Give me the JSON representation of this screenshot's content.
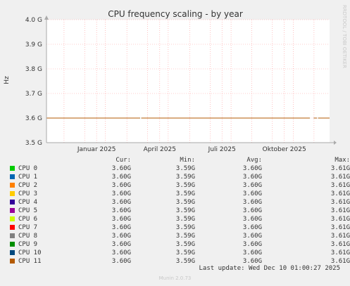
{
  "chart_data": {
    "type": "line",
    "title": "CPU frequency scaling - by year",
    "ylabel": "Hz",
    "side_text": "RRDTOOL / TOBI OETIKER",
    "ylim": [
      3.5,
      4.0
    ],
    "y_ticks": [
      {
        "value": 3.5,
        "label": "3.5 G"
      },
      {
        "value": 3.6,
        "label": "3.6 G"
      },
      {
        "value": 3.7,
        "label": "3.7 G"
      },
      {
        "value": 3.8,
        "label": "3.8 G"
      },
      {
        "value": 3.9,
        "label": "3.9 G"
      },
      {
        "value": 4.0,
        "label": "4.0 G"
      }
    ],
    "x_ticks": [
      {
        "label": "Januar 2025",
        "pos": 0.177
      },
      {
        "label": "April 2025",
        "pos": 0.4
      },
      {
        "label": "Juli 2025",
        "pos": 0.62
      },
      {
        "label": "Oktober 2025",
        "pos": 0.84
      }
    ],
    "x_gridlines": [
      0.062,
      0.135,
      0.208,
      0.284,
      0.357,
      0.43,
      0.506,
      0.579,
      0.652,
      0.725,
      0.798,
      0.872,
      0.945
    ],
    "series_value": 3.6,
    "line_gaps": [
      [
        0.33,
        0.335
      ],
      [
        0.93,
        0.945
      ],
      [
        0.955,
        0.96
      ]
    ],
    "line_color": "#b35a00",
    "legend_headers": {
      "cur": "Cur:",
      "min": "Min:",
      "avg": "Avg:",
      "max": "Max:"
    },
    "series": [
      {
        "name": "CPU 0",
        "color": "#00cc00",
        "cur": "3.60G",
        "min": "3.59G",
        "avg": "3.60G",
        "max": "3.61G"
      },
      {
        "name": "CPU 1",
        "color": "#0066b3",
        "cur": "3.60G",
        "min": "3.59G",
        "avg": "3.60G",
        "max": "3.61G"
      },
      {
        "name": "CPU 2",
        "color": "#ff8000",
        "cur": "3.60G",
        "min": "3.59G",
        "avg": "3.60G",
        "max": "3.61G"
      },
      {
        "name": "CPU 3",
        "color": "#ffcc00",
        "cur": "3.60G",
        "min": "3.59G",
        "avg": "3.60G",
        "max": "3.61G"
      },
      {
        "name": "CPU 4",
        "color": "#330099",
        "cur": "3.60G",
        "min": "3.59G",
        "avg": "3.60G",
        "max": "3.61G"
      },
      {
        "name": "CPU 5",
        "color": "#990099",
        "cur": "3.60G",
        "min": "3.59G",
        "avg": "3.60G",
        "max": "3.61G"
      },
      {
        "name": "CPU 6",
        "color": "#ccff00",
        "cur": "3.60G",
        "min": "3.59G",
        "avg": "3.60G",
        "max": "3.61G"
      },
      {
        "name": "CPU 7",
        "color": "#ff0000",
        "cur": "3.60G",
        "min": "3.59G",
        "avg": "3.60G",
        "max": "3.61G"
      },
      {
        "name": "CPU 8",
        "color": "#808080",
        "cur": "3.60G",
        "min": "3.59G",
        "avg": "3.60G",
        "max": "3.61G"
      },
      {
        "name": "CPU 9",
        "color": "#008f00",
        "cur": "3.60G",
        "min": "3.59G",
        "avg": "3.60G",
        "max": "3.61G"
      },
      {
        "name": "CPU 10",
        "color": "#00487d",
        "cur": "3.60G",
        "min": "3.59G",
        "avg": "3.60G",
        "max": "3.61G"
      },
      {
        "name": "CPU 11",
        "color": "#b35a00",
        "cur": "3.60G",
        "min": "3.59G",
        "avg": "3.60G",
        "max": "3.61G"
      }
    ],
    "last_update": "Last update: Wed Dec 10 01:00:27 2025",
    "footer": "Munin 2.0.73"
  }
}
